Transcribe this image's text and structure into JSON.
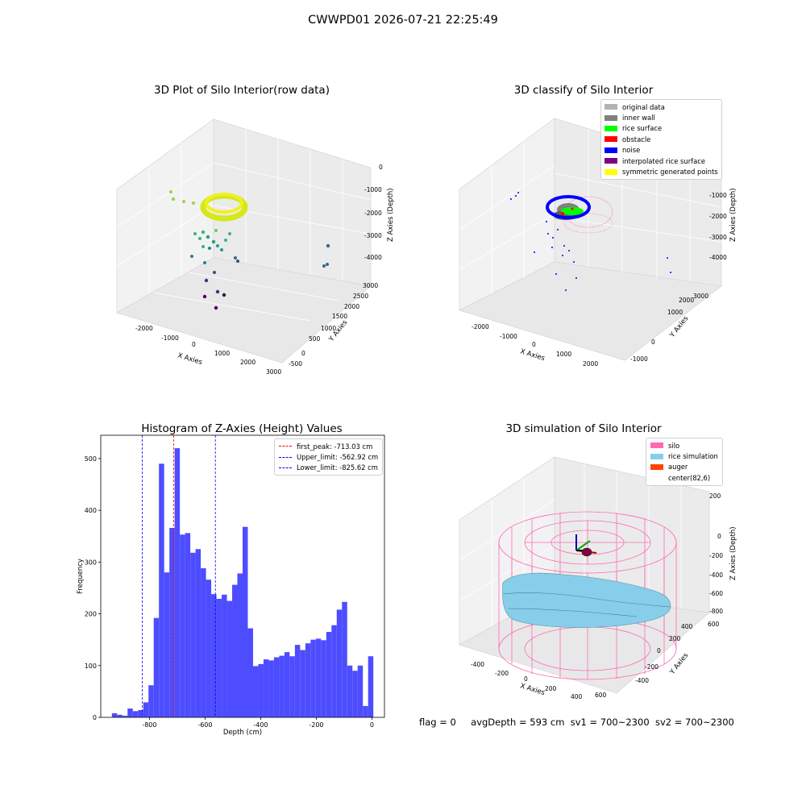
{
  "suptitle": "CWWPD01 2026-07-21 22:25:49",
  "status_bar": {
    "flag": "flag = 0",
    "avg_depth": "avgDepth = 593 cm",
    "sv1": "sv1 = 700~2300",
    "sv2": "sv2 = 700~2300"
  },
  "panels": {
    "raw": {
      "title": "3D Plot of Silo Interior(row data)",
      "xlabel": "X Axies",
      "ylabel": "Y Axies",
      "zlabel": "Z Axies (Depth)",
      "x_ticks": [
        "-2000",
        "-1000",
        "0",
        "1000",
        "2000",
        "3000"
      ],
      "y_ticks": [
        "-500",
        "0",
        "500",
        "1000",
        "1500",
        "2000",
        "2500",
        "3000"
      ],
      "z_ticks": [
        "0",
        "-1000",
        "-2000",
        "-3000",
        "-4000"
      ]
    },
    "classify": {
      "title": "3D classify of Silo Interior",
      "xlabel": "X Axies",
      "ylabel": "Y Axies",
      "zlabel": "Z Axies (Depth)",
      "x_ticks": [
        "-2000",
        "-1000",
        "0",
        "1000",
        "2000"
      ],
      "y_ticks": [
        "-1000",
        "0",
        "1000",
        "2000",
        "3000"
      ],
      "z_ticks": [
        "-1000",
        "-2000",
        "-3000",
        "-4000"
      ],
      "legend": [
        {
          "label": "original data",
          "color": "#b3b3b3"
        },
        {
          "label": "inner wall",
          "color": "#808080"
        },
        {
          "label": "rice surface",
          "color": "#00ff00"
        },
        {
          "label": "obstacle",
          "color": "#ff0000"
        },
        {
          "label": "noise",
          "color": "#0000ff"
        },
        {
          "label": "interpolated rice surface",
          "color": "#800080"
        },
        {
          "label": "symmetric generated points",
          "color": "#ffff00"
        }
      ]
    },
    "simulation": {
      "title": "3D simulation of Silo Interior",
      "xlabel": "X Axies",
      "ylabel": "Y Axies",
      "zlabel": "Z Axies (Depth)",
      "x_ticks": [
        "-400",
        "-200",
        "0",
        "200",
        "400",
        "600"
      ],
      "y_ticks": [
        "-400",
        "-200",
        "0",
        "200",
        "400",
        "600"
      ],
      "z_ticks": [
        "200",
        "0",
        "-200",
        "-400",
        "-600",
        "-800"
      ],
      "legend": [
        {
          "label": "silo",
          "color": "#ff69b4"
        },
        {
          "label": "rice simulation",
          "color": "#87ceeb"
        },
        {
          "label": "auger",
          "color": "#ff4500"
        },
        {
          "label": "center(82,6)",
          "color": "#ffffff"
        }
      ]
    }
  },
  "chart_data": {
    "type": "bar",
    "title": "Histogram of Z-Axies (Height) Values",
    "xlabel": "Depth (cm)",
    "ylabel": "Frequency",
    "xlim": [
      -975,
      45
    ],
    "ylim": [
      0,
      545
    ],
    "x_ticks": [
      -800,
      -600,
      -400,
      -200,
      0
    ],
    "y_ticks": [
      0,
      100,
      200,
      300,
      400,
      500
    ],
    "grid": false,
    "legend_position": "top-right",
    "bar_color": "#4d4dff",
    "bins": {
      "start": -935,
      "width": 18.8,
      "counts": [
        8,
        5,
        3,
        17,
        12,
        14,
        29,
        62,
        192,
        490,
        280,
        366,
        520,
        353,
        356,
        318,
        325,
        288,
        266,
        238,
        229,
        237,
        225,
        256,
        278,
        368,
        172,
        99,
        103,
        112,
        110,
        116,
        119,
        126,
        118,
        140,
        130,
        143,
        150,
        152,
        149,
        165,
        178,
        208,
        223,
        100,
        90,
        100,
        22,
        118
      ]
    },
    "reference_lines": [
      {
        "name": "first_peak: -713.03 cm",
        "x": -713.03,
        "color": "#ff0000"
      },
      {
        "name": "Upper_limit: -562.92 cm",
        "x": -562.92,
        "color": "#0000ff"
      },
      {
        "name": "Lower_limit: -825.62 cm",
        "x": -825.62,
        "color": "#0000ff"
      }
    ]
  }
}
